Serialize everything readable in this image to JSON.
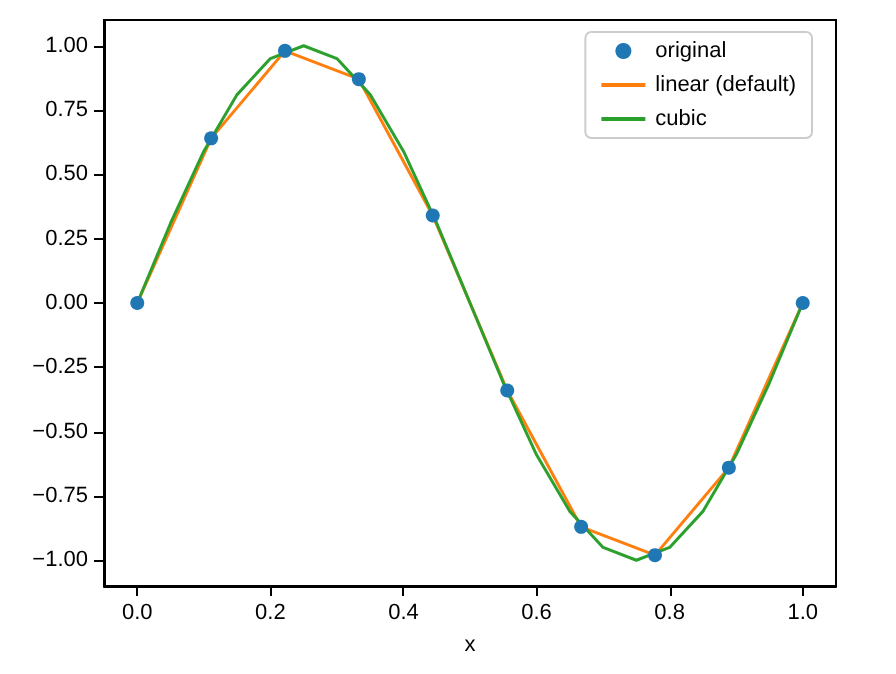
{
  "chart_data": {
    "type": "line",
    "xlabel": "x",
    "legend": "top right",
    "grid": false,
    "line_style": "solid",
    "xlim": [
      -0.05,
      1.05
    ],
    "xticks": [
      {
        "value": 0,
        "label": "0.0"
      },
      {
        "value": 0.2,
        "label": "0.2"
      },
      {
        "value": 0.4,
        "label": "0.4"
      },
      {
        "value": 0.6,
        "label": "0.6"
      },
      {
        "value": 0.8,
        "label": "0.8"
      },
      {
        "value": 1,
        "label": "1.0"
      }
    ],
    "ylim": [
      -1.1,
      1.1
    ],
    "yticks": [
      {
        "value": -1,
        "label": "−1.00"
      },
      {
        "value": -0.75,
        "label": "−0.75"
      },
      {
        "value": -0.5,
        "label": "−0.50"
      },
      {
        "value": -0.25,
        "label": "−0.25"
      },
      {
        "value": 0,
        "label": "0.00"
      },
      {
        "value": 0.25,
        "label": "0.25"
      },
      {
        "value": 0.5,
        "label": "0.50"
      },
      {
        "value": 0.75,
        "label": "0.75"
      },
      {
        "value": 1,
        "label": "1.00"
      }
    ],
    "series": [
      {
        "name": "original",
        "type": "scatter",
        "marker": "circle",
        "color": "#1f77b4",
        "x": [
          0,
          0.111,
          0.222,
          0.333,
          0.444,
          0.556,
          0.667,
          0.778,
          0.889,
          1
        ],
        "values": [
          0,
          0.64,
          0.98,
          0.87,
          0.34,
          -0.34,
          -0.87,
          -0.98,
          -0.64,
          0
        ]
      },
      {
        "name": "linear (default)",
        "color": "#ff7f0e",
        "x": [
          0,
          0.111,
          0.222,
          0.333,
          0.444,
          0.556,
          0.667,
          0.778,
          0.889,
          1
        ],
        "values": [
          0,
          0.64,
          0.98,
          0.87,
          0.34,
          -0.34,
          -0.87,
          -0.98,
          -0.64,
          0
        ]
      },
      {
        "name": "cubic",
        "color": "#2ca02c",
        "x": [
          0,
          0.05,
          0.1,
          0.15,
          0.2,
          0.25,
          0.3,
          0.35,
          0.4,
          0.45,
          0.5,
          0.55,
          0.6,
          0.65,
          0.7,
          0.75,
          0.8,
          0.85,
          0.9,
          0.95,
          1
        ],
        "values": [
          0,
          0.31,
          0.59,
          0.81,
          0.95,
          1.0,
          0.95,
          0.81,
          0.59,
          0.31,
          0,
          -0.31,
          -0.59,
          -0.81,
          -0.95,
          -1.0,
          -0.95,
          -0.81,
          -0.59,
          -0.31,
          0
        ]
      }
    ]
  }
}
